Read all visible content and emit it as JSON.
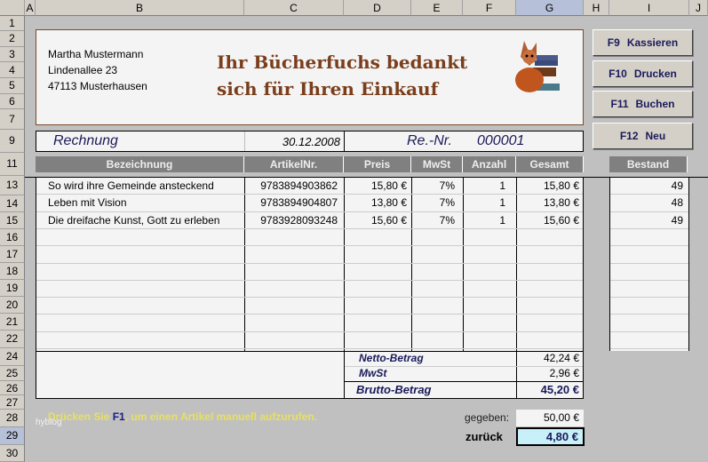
{
  "columns": [
    "A",
    "B",
    "C",
    "D",
    "E",
    "F",
    "G",
    "H",
    "I",
    "J"
  ],
  "rows": [
    "1",
    "2",
    "3",
    "4",
    "5",
    "6",
    "7",
    "9",
    "11",
    "13",
    "14",
    "15",
    "16",
    "17",
    "18",
    "19",
    "20",
    "21",
    "22",
    "24",
    "25",
    "26",
    "27",
    "28",
    "29",
    "30"
  ],
  "customer": {
    "name": "Martha Mustermann",
    "street": "Lindenallee 23",
    "city": "47113 Musterhausen"
  },
  "greeting": {
    "line1": "Ihr Bücherfuchs bedankt",
    "line2": "sich für Ihren Einkauf"
  },
  "logo": "fox-with-books",
  "invoice": {
    "title": "Rechnung",
    "date": "30.12.2008",
    "number_label": "Re.-Nr.",
    "number": "000001"
  },
  "buttons": [
    {
      "key": "F9",
      "label": "Kassieren"
    },
    {
      "key": "F10",
      "label": "Drucken"
    },
    {
      "key": "F11",
      "label": "Buchen"
    },
    {
      "key": "F12",
      "label": "Neu"
    }
  ],
  "table": {
    "headers": [
      "Bezeichnung",
      "ArtikelNr.",
      "Preis",
      "MwSt",
      "Anzahl",
      "Gesamt"
    ],
    "stock_header": "Bestand",
    "items": [
      {
        "name": "So wird ihre Gemeinde ansteckend",
        "article": "9783894903862",
        "price": "15,80 €",
        "vat": "7%",
        "qty": "1",
        "total": "15,80 €",
        "stock": "49"
      },
      {
        "name": "Leben mit Vision",
        "article": "9783894904807",
        "price": "13,80 €",
        "vat": "7%",
        "qty": "1",
        "total": "13,80 €",
        "stock": "48"
      },
      {
        "name": "Die dreifache Kunst, Gott zu erleben",
        "article": "9783928093248",
        "price": "15,60 €",
        "vat": "7%",
        "qty": "1",
        "total": "15,60 €",
        "stock": "49"
      }
    ]
  },
  "totals": {
    "net_label": "Netto-Betrag",
    "net": "42,24 €",
    "vat_label": "MwSt",
    "vat": "2,96 €",
    "gross_label": "Brutto-Betrag",
    "gross": "45,20 €"
  },
  "payment": {
    "given_label": "gegeben:",
    "given": "50,00 €",
    "change_label": "zurück",
    "change": "4,80 €"
  },
  "hint": {
    "before": "Drücken Sie ",
    "key": "F1",
    "after": ", um einen Artikel manuell aufzurufen."
  },
  "watermark": "hyblog",
  "colors": {
    "title": "#7a3e1c",
    "navy": "#1a1a5a",
    "hint": "#e8e060",
    "header_gray": "#808080",
    "change_bg": "#c8f0f8"
  }
}
